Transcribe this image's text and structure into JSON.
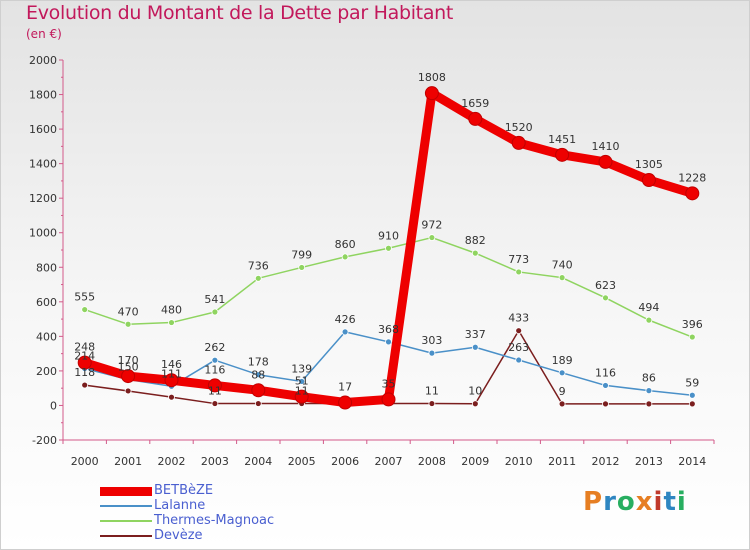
{
  "title": "Evolution du Montant de la Dette par Habitant",
  "subtitle": "(en €)",
  "logo": {
    "text": "Proxiti",
    "colors": [
      "#e67e22",
      "#2e86c1",
      "#27ae60",
      "#e67e22",
      "#c0392b",
      "#2e86c1",
      "#27ae60"
    ]
  },
  "chart_data": {
    "type": "line",
    "x": [
      "2000",
      "2001",
      "2002",
      "2003",
      "2004",
      "2005",
      "2006",
      "2007",
      "2008",
      "2009",
      "2010",
      "2011",
      "2012",
      "2013",
      "2014"
    ],
    "yticks": [
      "-200",
      "0",
      "200",
      "400",
      "600",
      "800",
      "1000",
      "1200",
      "1400",
      "1600",
      "1800",
      "2000"
    ],
    "ylim": [
      -200,
      2000
    ],
    "grid": false,
    "series": [
      {
        "name": "BETBèZE",
        "color": "#ee0000",
        "values": [
          248,
          170,
          146,
          116,
          88,
          51,
          17,
          35,
          1808,
          1659,
          1520,
          1451,
          1410,
          1305,
          1228
        ],
        "labels": [
          "248",
          "170",
          "146",
          "116",
          "88",
          "51",
          "17",
          "35",
          "1808",
          "1659",
          "1520",
          "1451",
          "1410",
          "1305",
          "1228"
        ]
      },
      {
        "name": "Lalanne",
        "color": "#4a90c8",
        "values": [
          214,
          150,
          111,
          262,
          178,
          139,
          426,
          368,
          303,
          337,
          263,
          189,
          116,
          86,
          59
        ],
        "labels": [
          "214",
          "150",
          "111",
          "262",
          "178",
          "139",
          "426",
          "368",
          "303",
          "337",
          "263",
          "189",
          "116",
          "86",
          "59"
        ]
      },
      {
        "name": "Thermes-Magnoac",
        "color": "#8fd460",
        "values": [
          555,
          470,
          480,
          541,
          736,
          799,
          860,
          910,
          972,
          882,
          773,
          740,
          623,
          494,
          396
        ],
        "labels": [
          "555",
          "470",
          "480",
          "541",
          "736",
          "799",
          "860",
          "910",
          "972",
          "882",
          "773",
          "740",
          "623",
          "494",
          "396"
        ]
      },
      {
        "name": "Devèze",
        "color": "#7b1e1e",
        "values": [
          118,
          84,
          48,
          11,
          11,
          11,
          11,
          11,
          11,
          10,
          433,
          9,
          9,
          9,
          9
        ],
        "labels": [
          "118",
          "",
          "",
          "11",
          "",
          "11",
          "",
          "",
          "11",
          "10",
          "433",
          "9",
          "",
          "",
          ""
        ]
      }
    ]
  }
}
